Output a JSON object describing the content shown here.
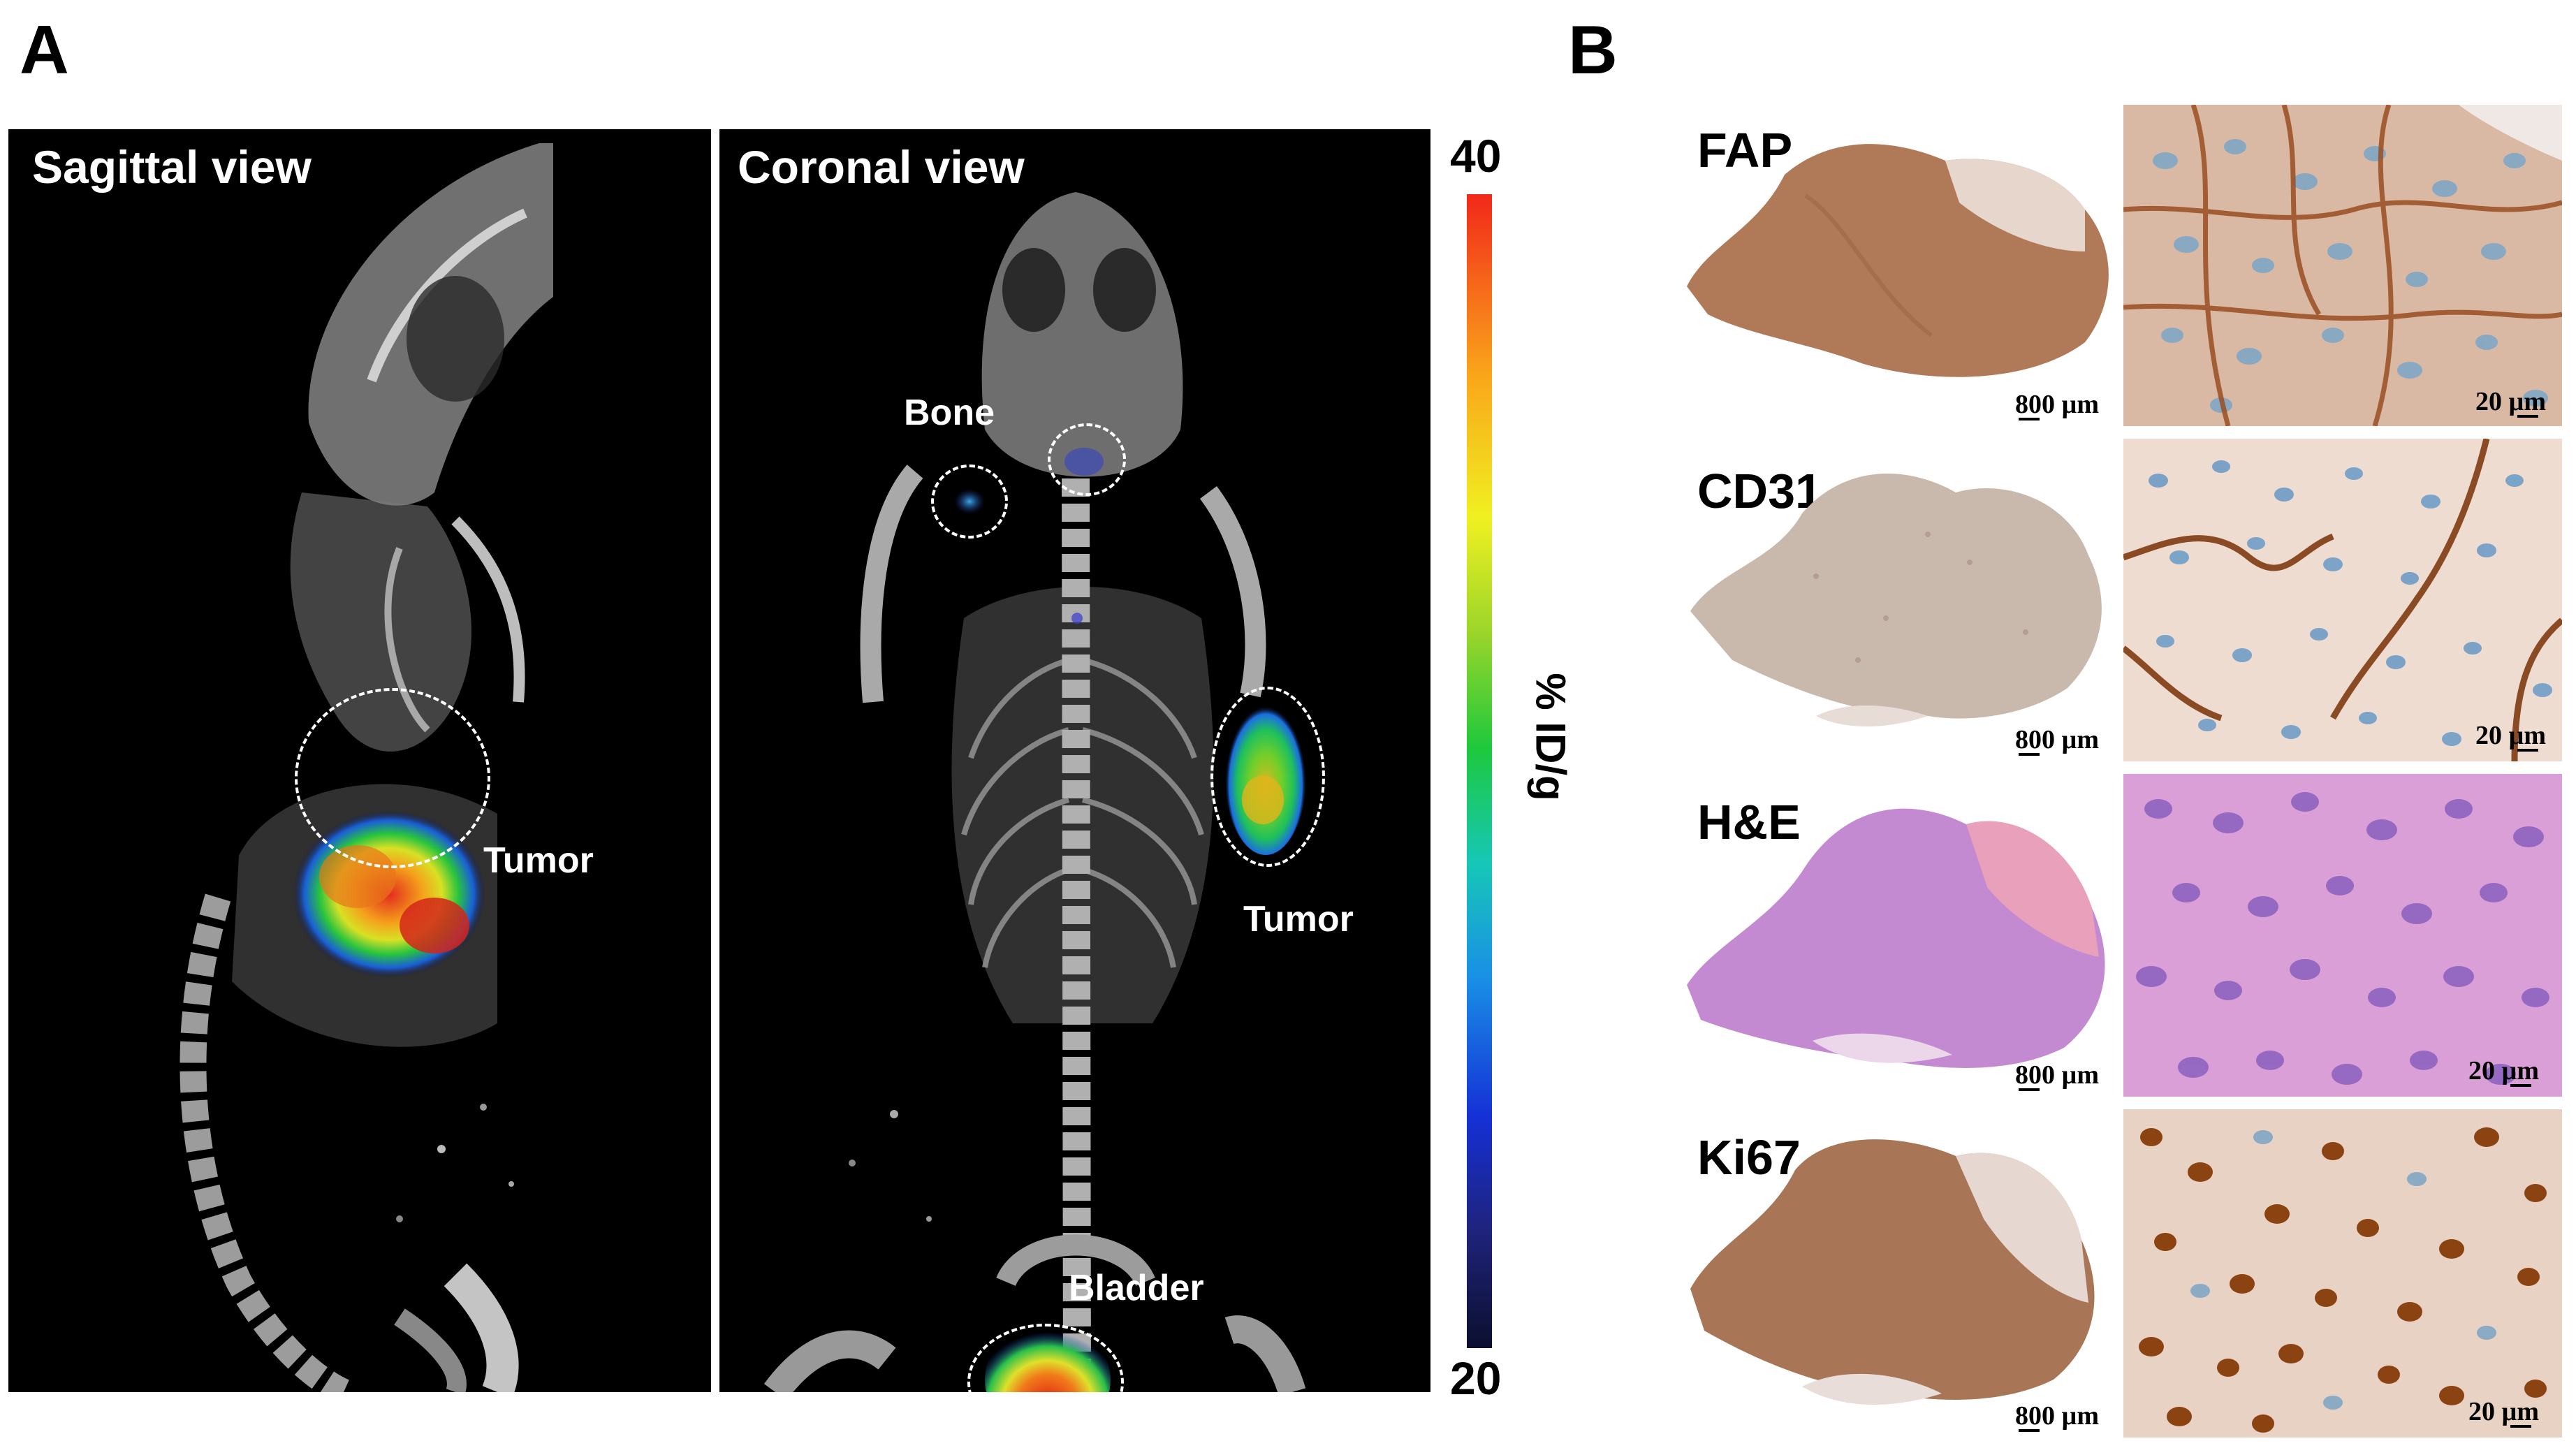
{
  "panel_a": {
    "letter": "A",
    "sagittal": {
      "title": "Sagittal view",
      "labels": {
        "tumor": "Tumor"
      }
    },
    "coronal": {
      "title": "Coronal view",
      "labels": {
        "bone": "Bone",
        "tumor": "Tumor",
        "bladder": "Bladder"
      }
    },
    "colorbar": {
      "max": "40",
      "min": "20",
      "unit": "% ID/g"
    }
  },
  "panel_b": {
    "letter": "B",
    "rows": [
      {
        "stain": "FAP",
        "scale_low": "800 µm",
        "scale_high": "20 µm"
      },
      {
        "stain": "CD31",
        "scale_low": "800 µm",
        "scale_high": "20 µm"
      },
      {
        "stain": "H&E",
        "scale_low": "800 µm",
        "scale_high": "20 µm"
      },
      {
        "stain": "Ki67",
        "scale_low": "800 µm",
        "scale_high": "20 µm"
      }
    ]
  },
  "colors": {
    "background": "#ffffff",
    "scan_background": "#000000",
    "ihc_brown": "#a9744f",
    "he_pink": "#c98ad3",
    "hematoxylin_blue": "#7aa6c8"
  }
}
